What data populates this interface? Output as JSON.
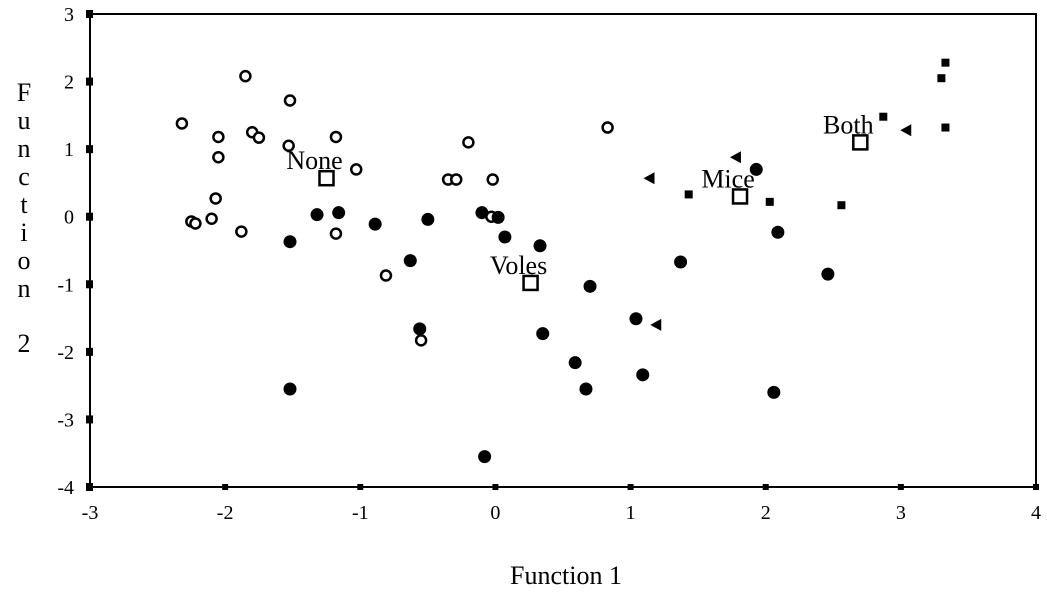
{
  "chart_data": {
    "type": "scatter",
    "title": "",
    "xlabel": "Function 1",
    "ylabel": "Function 2",
    "xlim": [
      -3,
      4
    ],
    "ylim": [
      -4,
      3
    ],
    "xticks": [
      -3,
      -2,
      -1,
      0,
      1,
      2,
      3,
      4
    ],
    "yticks": [
      3,
      2,
      1,
      0,
      -1,
      -2,
      -3,
      -4
    ],
    "grid": false,
    "series": [
      {
        "marker": "open-circle",
        "points": [
          [
            -2.32,
            1.38
          ],
          [
            -1.85,
            2.08
          ],
          [
            -1.52,
            1.72
          ],
          [
            -1.8,
            1.25
          ],
          [
            -1.75,
            1.17
          ],
          [
            -2.05,
            1.18
          ],
          [
            -1.18,
            1.18
          ],
          [
            -1.53,
            1.05
          ],
          [
            -2.05,
            0.88
          ],
          [
            -1.03,
            0.7
          ],
          [
            -2.07,
            0.27
          ],
          [
            -0.2,
            1.1
          ],
          [
            -0.35,
            0.55
          ],
          [
            -0.29,
            0.55
          ],
          [
            -0.02,
            0.55
          ],
          [
            0.83,
            1.32
          ],
          [
            -2.25,
            -0.07
          ],
          [
            -2.22,
            -0.1
          ],
          [
            -2.1,
            -0.03
          ],
          [
            -1.88,
            -0.22
          ],
          [
            -1.18,
            -0.25
          ],
          [
            -0.81,
            -0.87
          ],
          [
            -0.55,
            -1.83
          ],
          [
            -0.03,
            0.0
          ]
        ]
      },
      {
        "marker": "filled-circle",
        "points": [
          [
            -1.52,
            -0.37
          ],
          [
            -1.32,
            0.03
          ],
          [
            -1.16,
            0.06
          ],
          [
            -0.89,
            -0.11
          ],
          [
            -0.5,
            -0.04
          ],
          [
            -0.1,
            0.06
          ],
          [
            0.02,
            -0.01
          ],
          [
            0.07,
            -0.3
          ],
          [
            0.33,
            -0.43
          ],
          [
            -0.63,
            -0.65
          ],
          [
            -0.56,
            -1.66
          ],
          [
            0.35,
            -1.73
          ],
          [
            0.7,
            -1.03
          ],
          [
            0.59,
            -2.16
          ],
          [
            0.67,
            -2.55
          ],
          [
            1.04,
            -1.51
          ],
          [
            1.09,
            -2.34
          ],
          [
            1.37,
            -0.67
          ],
          [
            1.93,
            0.7
          ],
          [
            2.09,
            -0.23
          ],
          [
            2.46,
            -0.85
          ],
          [
            2.06,
            -2.6
          ],
          [
            -1.52,
            -2.55
          ],
          [
            -0.08,
            -3.55
          ]
        ]
      },
      {
        "marker": "small-square",
        "points": [
          [
            2.87,
            1.48
          ],
          [
            3.3,
            2.05
          ],
          [
            3.33,
            2.28
          ],
          [
            3.33,
            1.32
          ],
          [
            2.03,
            0.22
          ],
          [
            2.56,
            0.17
          ],
          [
            1.43,
            0.33
          ]
        ]
      },
      {
        "marker": "left-triangle",
        "points": [
          [
            1.14,
            0.57
          ],
          [
            1.78,
            0.88
          ],
          [
            3.04,
            1.28
          ],
          [
            1.19,
            -1.6
          ]
        ]
      }
    ],
    "centroids": [
      {
        "label": "None",
        "x": -1.25,
        "y": 0.57
      },
      {
        "label": "Voles",
        "x": 0.26,
        "y": -0.98
      },
      {
        "label": "Mice",
        "x": 1.81,
        "y": 0.3
      },
      {
        "label": "Both",
        "x": 2.7,
        "y": 1.1
      }
    ]
  }
}
